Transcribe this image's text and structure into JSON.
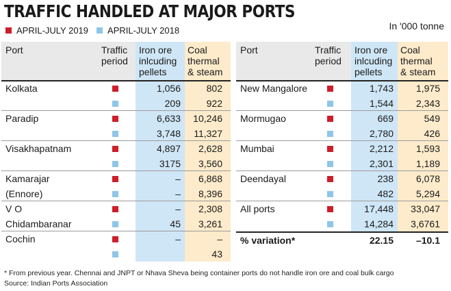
{
  "title": "TRAFFIC HANDLED AT MAJOR PORTS",
  "legend": [
    {
      "label": "APRIL-JULY 2019",
      "color": "#cc1f2a"
    },
    {
      "label": "APRIL-JULY 2018",
      "color": "#8fc6e8"
    }
  ],
  "unit": "In '000 tonne",
  "headers": {
    "port": "Port",
    "period": [
      "Traffic",
      "period"
    ],
    "iron": [
      "Iron ore",
      "inlcuding",
      "pellets"
    ],
    "coal": [
      "Coal",
      "thermal",
      "& steam"
    ]
  },
  "chart_data": {
    "type": "table",
    "columns": [
      "Port",
      "Traffic period",
      "Iron ore inlcuding pellets",
      "Coal thermal & steam"
    ],
    "left": [
      {
        "port": [
          "Kolkata"
        ],
        "rows": [
          {
            "period": "April-July 2019",
            "iron": "1,056",
            "coal": "802"
          },
          {
            "period": "April-July 2018",
            "iron": "209",
            "coal": "922"
          }
        ]
      },
      {
        "port": [
          "Paradip"
        ],
        "rows": [
          {
            "period": "April-July 2019",
            "iron": "6,633",
            "coal": "10,246"
          },
          {
            "period": "April-July 2018",
            "iron": "3,748",
            "coal": "11,327"
          }
        ]
      },
      {
        "port": [
          "Visakhapatnam"
        ],
        "rows": [
          {
            "period": "April-July 2019",
            "iron": "4,897",
            "coal": "2,628"
          },
          {
            "period": "April-July 2018",
            "iron": "3175",
            "coal": "3,560"
          }
        ]
      },
      {
        "port": [
          "Kamarajar",
          "(Ennore)"
        ],
        "rows": [
          {
            "period": "April-July 2019",
            "iron": "–",
            "coal": "6,868"
          },
          {
            "period": "April-July 2018",
            "iron": "–",
            "coal": "8,396"
          }
        ]
      },
      {
        "port": [
          "V O",
          "Chidambaranar"
        ],
        "rows": [
          {
            "period": "April-July 2019",
            "iron": "–",
            "coal": "2,308"
          },
          {
            "period": "April-July 2018",
            "iron": "45",
            "coal": "3,261"
          }
        ]
      },
      {
        "port": [
          "Cochin"
        ],
        "rows": [
          {
            "period": "April-July 2019",
            "iron": "–",
            "coal": "–"
          },
          {
            "period": "April-July 2018",
            "iron": "",
            "coal": "43"
          }
        ]
      }
    ],
    "right": [
      {
        "port": [
          "New Mangalore"
        ],
        "rows": [
          {
            "period": "April-July 2019",
            "iron": "1,743",
            "coal": "1,975"
          },
          {
            "period": "April-July 2018",
            "iron": "1,544",
            "coal": "2,343"
          }
        ]
      },
      {
        "port": [
          "Mormugao"
        ],
        "rows": [
          {
            "period": "April-July 2019",
            "iron": "669",
            "coal": "549"
          },
          {
            "period": "April-July 2018",
            "iron": "2,780",
            "coal": "426"
          }
        ]
      },
      {
        "port": [
          "Mumbai"
        ],
        "rows": [
          {
            "period": "April-July 2019",
            "iron": "2,212",
            "coal": "1,593"
          },
          {
            "period": "April-July 2018",
            "iron": "2,301",
            "coal": "1,189"
          }
        ]
      },
      {
        "port": [
          "Deendayal"
        ],
        "rows": [
          {
            "period": "April-July 2019",
            "iron": "238",
            "coal": "6,078"
          },
          {
            "period": "April-July 2018",
            "iron": "482",
            "coal": "5,294"
          }
        ]
      },
      {
        "port": [
          "All ports"
        ],
        "rows": [
          {
            "period": "April-July 2019",
            "iron": "17,448",
            "coal": "33,047"
          },
          {
            "period": "April-July 2018",
            "iron": "14,284",
            "coal": "3,6761"
          }
        ]
      }
    ],
    "variation": {
      "label": "% variation*",
      "iron": "22.15",
      "coal": "–10.1"
    }
  },
  "footnote": "* From previous year. Chennai and JNPT or Nhava Sheva being container ports do not handle iron ore and coal bulk cargo",
  "source": "Source: Indian Ports Association"
}
